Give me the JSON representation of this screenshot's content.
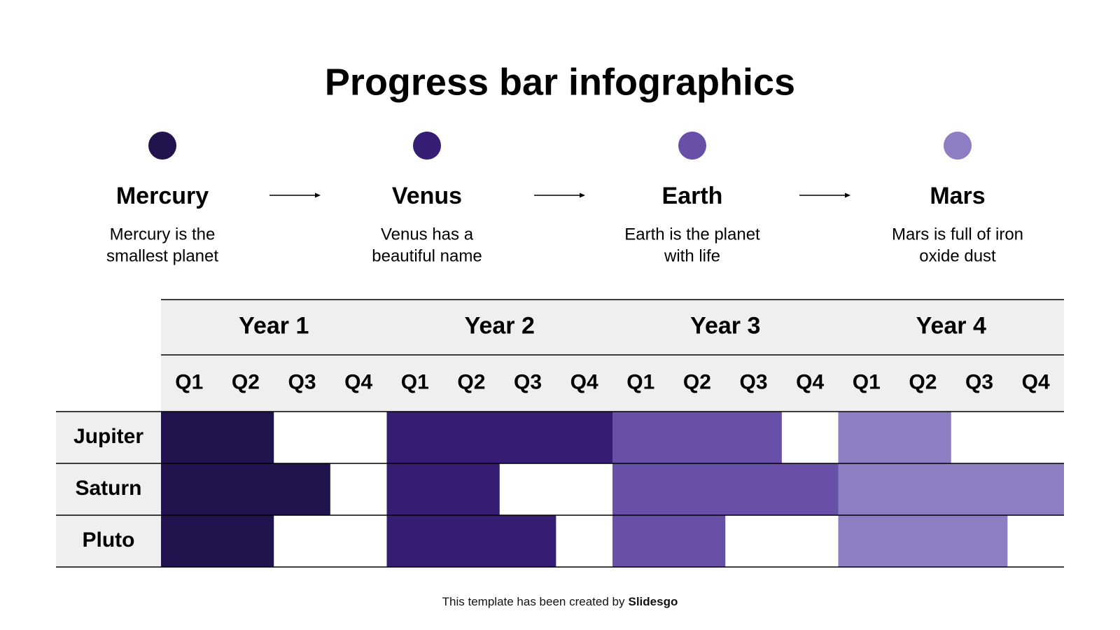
{
  "title": "Progress bar infographics",
  "phases": [
    {
      "name": "Mercury",
      "description": [
        "Mercury is the",
        "smallest planet"
      ],
      "color": "#21134d"
    },
    {
      "name": "Venus",
      "description": [
        "Venus has a",
        "beautiful name"
      ],
      "color": "#361d74"
    },
    {
      "name": "Earth",
      "description": [
        "Earth is the planet",
        "with life"
      ],
      "color": "#684fa8"
    },
    {
      "name": "Mars",
      "description": [
        "Mars is full of iron",
        "oxide dust"
      ],
      "color": "#8d7dc2"
    }
  ],
  "table": {
    "years": [
      "Year 1",
      "Year 2",
      "Year 3",
      "Year 4"
    ],
    "quarters": [
      "Q1",
      "Q2",
      "Q3",
      "Q4"
    ],
    "rows": [
      {
        "label": "Jupiter",
        "filled_quarters": [
          2,
          4,
          3,
          2
        ]
      },
      {
        "label": "Saturn",
        "filled_quarters": [
          3,
          2,
          4,
          4
        ]
      },
      {
        "label": "Pluto",
        "filled_quarters": [
          2,
          3,
          2,
          3
        ]
      }
    ]
  },
  "footer": {
    "text": "This template has been created by",
    "brand": "Slidesgo"
  }
}
